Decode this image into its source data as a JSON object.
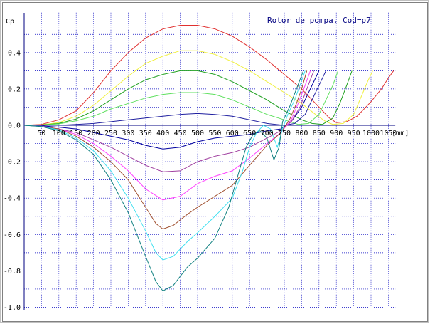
{
  "chart_data": {
    "type": "line",
    "title": "Rotor de pompa, Cod=p7",
    "ylabel": "Cp",
    "xlabel": "[mm]",
    "xlim": [
      0,
      1100
    ],
    "ylim": [
      -1.0,
      0.6
    ],
    "grid": true,
    "x_ticks": [
      50,
      100,
      150,
      200,
      250,
      300,
      350,
      400,
      450,
      500,
      550,
      600,
      650,
      700,
      750,
      800,
      850,
      900,
      950,
      1000,
      1050
    ],
    "x_tick_labels": [
      "50",
      "100",
      "150",
      "200",
      "250",
      "300",
      "350",
      "400",
      "450",
      "500",
      "550",
      "600",
      "650",
      "700",
      "750",
      "800",
      "850",
      "900",
      "950",
      "1000",
      "1050"
    ],
    "y_ticks": [
      0.4,
      0.2,
      0.0,
      -0.2,
      -0.4,
      -0.6,
      -0.8,
      -1.0
    ],
    "y_tick_labels": [
      "0.4",
      "0.2",
      "0.0",
      "-0.2",
      "-0.4",
      "-0.6",
      "-0.8",
      "-1.0"
    ],
    "series": [
      {
        "color": "#e03030",
        "points": [
          [
            0,
            0
          ],
          [
            50,
            0.005
          ],
          [
            100,
            0.03
          ],
          [
            150,
            0.08
          ],
          [
            200,
            0.18
          ],
          [
            250,
            0.3
          ],
          [
            300,
            0.4
          ],
          [
            350,
            0.48
          ],
          [
            400,
            0.53
          ],
          [
            450,
            0.55
          ],
          [
            500,
            0.55
          ],
          [
            550,
            0.53
          ],
          [
            600,
            0.49
          ],
          [
            650,
            0.43
          ],
          [
            700,
            0.36
          ],
          [
            750,
            0.28
          ],
          [
            800,
            0.2
          ],
          [
            850,
            0.1
          ],
          [
            880,
            0.04
          ],
          [
            900,
            0.015
          ],
          [
            930,
            0.02
          ],
          [
            960,
            0.05
          ],
          [
            1000,
            0.13
          ],
          [
            1030,
            0.2
          ],
          [
            1050,
            0.26
          ],
          [
            1065,
            0.3
          ]
        ]
      },
      {
        "color": "#f0f040",
        "points": [
          [
            0,
            0
          ],
          [
            50,
            0.003
          ],
          [
            100,
            0.015
          ],
          [
            150,
            0.05
          ],
          [
            200,
            0.11
          ],
          [
            250,
            0.19
          ],
          [
            300,
            0.27
          ],
          [
            350,
            0.34
          ],
          [
            400,
            0.38
          ],
          [
            450,
            0.41
          ],
          [
            500,
            0.41
          ],
          [
            550,
            0.39
          ],
          [
            600,
            0.35
          ],
          [
            650,
            0.3
          ],
          [
            700,
            0.24
          ],
          [
            750,
            0.18
          ],
          [
            800,
            0.12
          ],
          [
            840,
            0.06
          ],
          [
            870,
            0.02
          ],
          [
            890,
            0.005
          ],
          [
            920,
            0.01
          ],
          [
            950,
            0.06
          ],
          [
            970,
            0.15
          ],
          [
            990,
            0.24
          ],
          [
            1005,
            0.3
          ]
        ]
      },
      {
        "color": "#20a020",
        "points": [
          [
            0,
            0
          ],
          [
            50,
            0.002
          ],
          [
            100,
            0.01
          ],
          [
            150,
            0.035
          ],
          [
            200,
            0.08
          ],
          [
            250,
            0.14
          ],
          [
            300,
            0.2
          ],
          [
            350,
            0.25
          ],
          [
            400,
            0.28
          ],
          [
            450,
            0.3
          ],
          [
            500,
            0.3
          ],
          [
            550,
            0.28
          ],
          [
            600,
            0.24
          ],
          [
            650,
            0.19
          ],
          [
            700,
            0.14
          ],
          [
            750,
            0.08
          ],
          [
            800,
            0.03
          ],
          [
            830,
            0.01
          ],
          [
            860,
            0.005
          ],
          [
            890,
            0.04
          ],
          [
            910,
            0.12
          ],
          [
            930,
            0.22
          ],
          [
            945,
            0.3
          ]
        ]
      },
      {
        "color": "#60e060",
        "points": [
          [
            0,
            0
          ],
          [
            50,
            0.001
          ],
          [
            100,
            0.008
          ],
          [
            150,
            0.025
          ],
          [
            200,
            0.05
          ],
          [
            250,
            0.09
          ],
          [
            300,
            0.12
          ],
          [
            350,
            0.15
          ],
          [
            400,
            0.17
          ],
          [
            450,
            0.18
          ],
          [
            500,
            0.18
          ],
          [
            550,
            0.17
          ],
          [
            600,
            0.14
          ],
          [
            650,
            0.1
          ],
          [
            700,
            0.06
          ],
          [
            750,
            0.03
          ],
          [
            790,
            0.005
          ],
          [
            820,
            0.01
          ],
          [
            850,
            0.06
          ],
          [
            870,
            0.14
          ],
          [
            890,
            0.22
          ],
          [
            905,
            0.3
          ]
        ]
      },
      {
        "color": "#2020a0",
        "points": [
          [
            0,
            0
          ],
          [
            50,
            0.0
          ],
          [
            100,
            0.0
          ],
          [
            150,
            0.005
          ],
          [
            200,
            0.01
          ],
          [
            250,
            0.02
          ],
          [
            300,
            0.03
          ],
          [
            350,
            0.04
          ],
          [
            400,
            0.05
          ],
          [
            450,
            0.06
          ],
          [
            500,
            0.065
          ],
          [
            550,
            0.06
          ],
          [
            600,
            0.05
          ],
          [
            650,
            0.03
          ],
          [
            700,
            0.01
          ],
          [
            750,
            0.0
          ],
          [
            780,
            0.01
          ],
          [
            810,
            0.06
          ],
          [
            830,
            0.14
          ],
          [
            850,
            0.22
          ],
          [
            870,
            0.3
          ]
        ]
      },
      {
        "color": "#0000a0",
        "points": [
          [
            0,
            0
          ],
          [
            50,
            -0.003
          ],
          [
            100,
            -0.01
          ],
          [
            150,
            -0.02
          ],
          [
            200,
            -0.04
          ],
          [
            250,
            -0.06
          ],
          [
            300,
            -0.08
          ],
          [
            350,
            -0.11
          ],
          [
            400,
            -0.13
          ],
          [
            450,
            -0.12
          ],
          [
            500,
            -0.09
          ],
          [
            550,
            -0.07
          ],
          [
            600,
            -0.06
          ],
          [
            650,
            -0.05
          ],
          [
            700,
            -0.03
          ],
          [
            740,
            -0.02
          ],
          [
            770,
            0.02
          ],
          [
            800,
            0.1
          ],
          [
            825,
            0.2
          ],
          [
            850,
            0.3
          ]
        ]
      },
      {
        "color": "#a040a0",
        "points": [
          [
            0,
            0
          ],
          [
            50,
            -0.005
          ],
          [
            100,
            -0.02
          ],
          [
            150,
            -0.04
          ],
          [
            200,
            -0.08
          ],
          [
            250,
            -0.12
          ],
          [
            300,
            -0.17
          ],
          [
            350,
            -0.22
          ],
          [
            400,
            -0.255
          ],
          [
            450,
            -0.25
          ],
          [
            500,
            -0.2
          ],
          [
            550,
            -0.17
          ],
          [
            600,
            -0.15
          ],
          [
            650,
            -0.12
          ],
          [
            700,
            -0.07
          ],
          [
            740,
            -0.03
          ],
          [
            770,
            0.02
          ],
          [
            795,
            0.1
          ],
          [
            815,
            0.2
          ],
          [
            835,
            0.3
          ]
        ]
      },
      {
        "color": "#ff40ff",
        "points": [
          [
            0,
            0
          ],
          [
            50,
            -0.005
          ],
          [
            100,
            -0.02
          ],
          [
            150,
            -0.05
          ],
          [
            200,
            -0.1
          ],
          [
            250,
            -0.17
          ],
          [
            300,
            -0.25
          ],
          [
            350,
            -0.35
          ],
          [
            400,
            -0.41
          ],
          [
            450,
            -0.39
          ],
          [
            500,
            -0.32
          ],
          [
            550,
            -0.28
          ],
          [
            600,
            -0.25
          ],
          [
            650,
            -0.18
          ],
          [
            700,
            -0.1
          ],
          [
            740,
            -0.04
          ],
          [
            770,
            0.03
          ],
          [
            790,
            0.12
          ],
          [
            810,
            0.22
          ],
          [
            825,
            0.3
          ]
        ]
      },
      {
        "color": "#a05030",
        "points": [
          [
            0,
            0
          ],
          [
            50,
            -0.006
          ],
          [
            100,
            -0.02
          ],
          [
            150,
            -0.06
          ],
          [
            200,
            -0.12
          ],
          [
            250,
            -0.2
          ],
          [
            300,
            -0.3
          ],
          [
            350,
            -0.45
          ],
          [
            380,
            -0.54
          ],
          [
            400,
            -0.57
          ],
          [
            430,
            -0.55
          ],
          [
            470,
            -0.49
          ],
          [
            500,
            -0.45
          ],
          [
            550,
            -0.39
          ],
          [
            600,
            -0.33
          ],
          [
            650,
            -0.22
          ],
          [
            700,
            -0.11
          ],
          [
            740,
            -0.04
          ],
          [
            765,
            0.03
          ],
          [
            785,
            0.12
          ],
          [
            800,
            0.2
          ],
          [
            815,
            0.3
          ]
        ]
      },
      {
        "color": "#40e0f0",
        "points": [
          [
            0,
            0
          ],
          [
            50,
            -0.006
          ],
          [
            100,
            -0.025
          ],
          [
            150,
            -0.07
          ],
          [
            200,
            -0.14
          ],
          [
            250,
            -0.25
          ],
          [
            300,
            -0.4
          ],
          [
            350,
            -0.58
          ],
          [
            380,
            -0.7
          ],
          [
            400,
            -0.74
          ],
          [
            430,
            -0.72
          ],
          [
            470,
            -0.64
          ],
          [
            500,
            -0.59
          ],
          [
            550,
            -0.5
          ],
          [
            600,
            -0.4
          ],
          [
            630,
            -0.25
          ],
          [
            650,
            -0.12
          ],
          [
            670,
            -0.04
          ],
          [
            690,
            0.0
          ],
          [
            710,
            -0.02
          ],
          [
            730,
            -0.12
          ],
          [
            745,
            -0.02
          ],
          [
            760,
            0.06
          ],
          [
            780,
            0.14
          ],
          [
            795,
            0.22
          ],
          [
            810,
            0.3
          ]
        ]
      },
      {
        "color": "#108080",
        "points": [
          [
            0,
            0
          ],
          [
            50,
            -0.007
          ],
          [
            100,
            -0.03
          ],
          [
            150,
            -0.08
          ],
          [
            200,
            -0.16
          ],
          [
            250,
            -0.3
          ],
          [
            300,
            -0.48
          ],
          [
            350,
            -0.72
          ],
          [
            380,
            -0.86
          ],
          [
            400,
            -0.91
          ],
          [
            430,
            -0.88
          ],
          [
            470,
            -0.78
          ],
          [
            500,
            -0.73
          ],
          [
            550,
            -0.62
          ],
          [
            590,
            -0.45
          ],
          [
            620,
            -0.25
          ],
          [
            640,
            -0.12
          ],
          [
            660,
            -0.05
          ],
          [
            680,
            -0.03
          ],
          [
            700,
            -0.07
          ],
          [
            720,
            -0.19
          ],
          [
            735,
            -0.12
          ],
          [
            745,
            0.02
          ],
          [
            765,
            0.1
          ],
          [
            785,
            0.2
          ],
          [
            805,
            0.3
          ]
        ]
      }
    ]
  }
}
